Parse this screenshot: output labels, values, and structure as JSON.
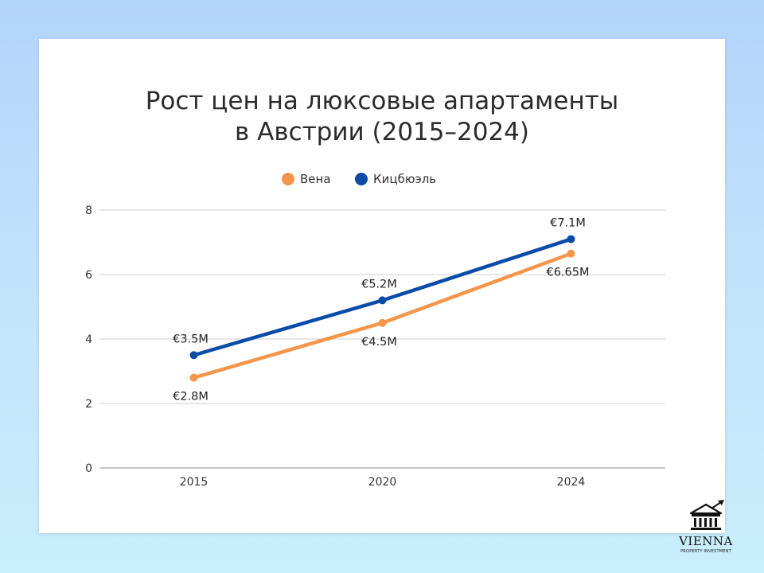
{
  "chart_data": {
    "type": "line",
    "title_lines": [
      "Рост цен на люксовые апартаменты",
      "в Австрии (2015–2024)"
    ],
    "categories": [
      "2015",
      "2020",
      "2024"
    ],
    "series": [
      {
        "name": "Вена",
        "color": "#f5954a",
        "values": [
          2.8,
          4.5,
          6.65
        ],
        "labels": [
          "€2.8M",
          "€4.5M",
          "€6.65M"
        ],
        "label_placement": "below"
      },
      {
        "name": "Кицбюэль",
        "color": "#0a4aa8",
        "values": [
          3.5,
          5.2,
          7.1
        ],
        "labels": [
          "€3.5M",
          "€5.2M",
          "€7.1M"
        ],
        "label_placement": "above"
      }
    ],
    "yticks": [
      0,
      2,
      4,
      6,
      8
    ],
    "ylim": [
      0,
      8
    ],
    "xlabel": "",
    "ylabel": "",
    "legend": "top-center",
    "grid": "horizontal"
  },
  "logo": {
    "name": "VIENNA",
    "tagline": "PROPERTY INVESTMENT"
  }
}
